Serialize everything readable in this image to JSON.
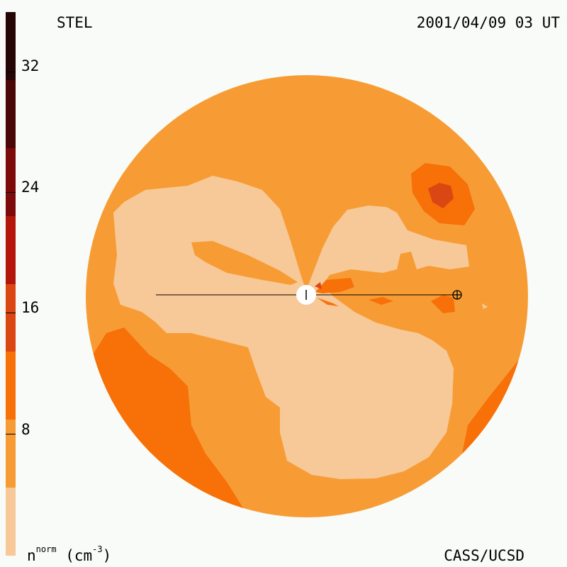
{
  "header": {
    "station": "STEL",
    "datetime": "2001/04/09 03 UT"
  },
  "footer": {
    "units_base": "n",
    "units_sup": "norm",
    "units_paren": "(cm",
    "units_exp": "-3",
    "units_close": ")",
    "credit": "CASS/UCSD"
  },
  "colorbar": {
    "tick_labels": [
      "32",
      "24",
      "16",
      "8"
    ],
    "segments": [
      {
        "color": "#f7c998"
      },
      {
        "color": "#f79c35"
      },
      {
        "color": "#f77008"
      },
      {
        "color": "#db4712"
      },
      {
        "color": "#b4160c"
      },
      {
        "color": "#7c0a0a"
      },
      {
        "color": "#4a0707"
      },
      {
        "color": "#260505"
      }
    ]
  },
  "colors": {
    "background": "#f8fbf7",
    "disk_base": "#f79c35",
    "low_density": "#f7c998",
    "mid_density": "#f77008",
    "high_density": "#db4712"
  },
  "markers": {
    "sun": "sun-marker",
    "earth": "earth-marker"
  }
}
